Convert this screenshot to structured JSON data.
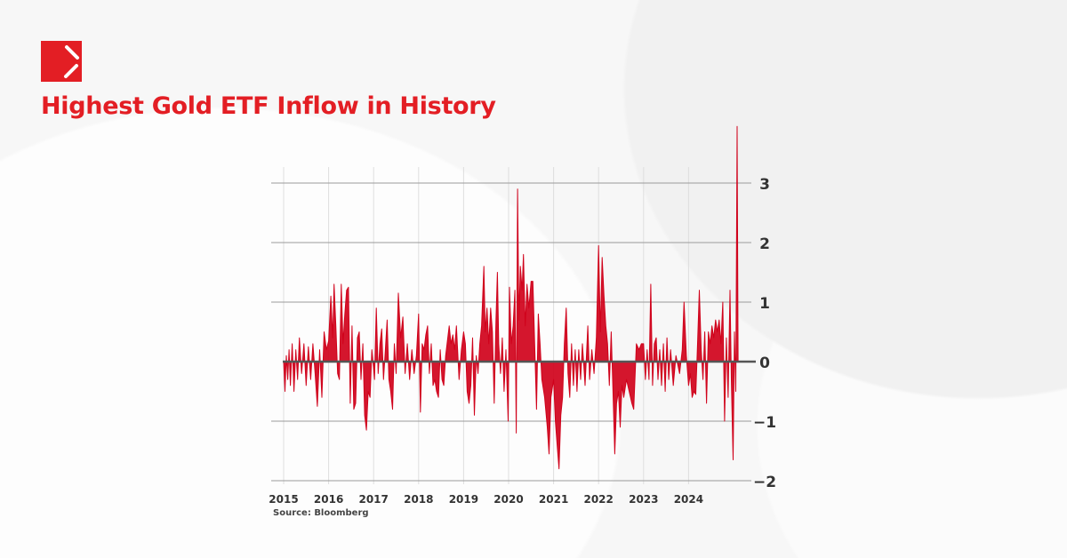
{
  "header": {
    "title": "Highest Gold ETF Inflow in History",
    "brand_color": "#e31e24"
  },
  "source": "Source: Bloomberg",
  "chart_data": {
    "type": "area",
    "title": "",
    "xlabel": "",
    "ylabel": "",
    "xlim": [
      2015,
      2025.25
    ],
    "ylim": [
      -2,
      3.5
    ],
    "x_ticks": [
      "2015",
      "2016",
      "2017",
      "2018",
      "2019",
      "2020",
      "2021",
      "2022",
      "2023",
      "2024"
    ],
    "y_ticks": [
      3,
      2,
      1,
      0,
      -1,
      -2
    ],
    "y_tick_labels": [
      "3",
      "2",
      "1",
      "0",
      "−1",
      "−2"
    ],
    "y_axis_position": "right",
    "grid": true,
    "color": "#d0021b",
    "series": [
      {
        "points": [
          [
            2015.0,
            0
          ],
          [
            2015.03,
            -0.5
          ],
          [
            2015.06,
            0.1
          ],
          [
            2015.09,
            -0.3
          ],
          [
            2015.12,
            0.2
          ],
          [
            2015.15,
            -0.4
          ],
          [
            2015.19,
            0.3
          ],
          [
            2015.23,
            -0.5
          ],
          [
            2015.27,
            0.2
          ],
          [
            2015.31,
            -0.3
          ],
          [
            2015.35,
            0.4
          ],
          [
            2015.4,
            -0.2
          ],
          [
            2015.45,
            0.3
          ],
          [
            2015.5,
            -0.4
          ],
          [
            2015.55,
            0.25
          ],
          [
            2015.6,
            -0.3
          ],
          [
            2015.65,
            0.3
          ],
          [
            2015.7,
            -0.2
          ],
          [
            2015.75,
            -0.75
          ],
          [
            2015.8,
            0.2
          ],
          [
            2015.85,
            -0.6
          ],
          [
            2015.9,
            0.5
          ],
          [
            2015.95,
            0.2
          ],
          [
            2016.0,
            0.35
          ],
          [
            2016.05,
            1.1
          ],
          [
            2016.09,
            0.4
          ],
          [
            2016.12,
            1.3
          ],
          [
            2016.16,
            0.6
          ],
          [
            2016.2,
            -0.2
          ],
          [
            2016.24,
            -0.3
          ],
          [
            2016.28,
            1.3
          ],
          [
            2016.32,
            0.3
          ],
          [
            2016.36,
            0.8
          ],
          [
            2016.4,
            1.2
          ],
          [
            2016.44,
            1.25
          ],
          [
            2016.48,
            -0.7
          ],
          [
            2016.52,
            0.6
          ],
          [
            2016.56,
            -0.8
          ],
          [
            2016.6,
            -0.7
          ],
          [
            2016.64,
            0.4
          ],
          [
            2016.68,
            0.5
          ],
          [
            2016.72,
            -0.3
          ],
          [
            2016.76,
            0.3
          ],
          [
            2016.8,
            -0.9
          ],
          [
            2016.84,
            -1.15
          ],
          [
            2016.88,
            -0.5
          ],
          [
            2016.92,
            -0.6
          ],
          [
            2016.96,
            0.2
          ],
          [
            2017.02,
            -0.3
          ],
          [
            2017.06,
            0.9
          ],
          [
            2017.1,
            -0.2
          ],
          [
            2017.14,
            0.3
          ],
          [
            2017.18,
            0.55
          ],
          [
            2017.22,
            -0.3
          ],
          [
            2017.26,
            0.2
          ],
          [
            2017.3,
            0.7
          ],
          [
            2017.34,
            -0.3
          ],
          [
            2017.38,
            -0.5
          ],
          [
            2017.42,
            -0.8
          ],
          [
            2017.46,
            0.3
          ],
          [
            2017.5,
            -0.2
          ],
          [
            2017.55,
            1.15
          ],
          [
            2017.6,
            0.4
          ],
          [
            2017.65,
            0.75
          ],
          [
            2017.7,
            -0.2
          ],
          [
            2017.75,
            0.3
          ],
          [
            2017.8,
            -0.3
          ],
          [
            2017.85,
            0.2
          ],
          [
            2017.9,
            -0.2
          ],
          [
            2017.95,
            0.1
          ],
          [
            2018.0,
            0.8
          ],
          [
            2018.04,
            -0.85
          ],
          [
            2018.08,
            0.3
          ],
          [
            2018.12,
            0.2
          ],
          [
            2018.16,
            0.45
          ],
          [
            2018.2,
            0.6
          ],
          [
            2018.24,
            -0.2
          ],
          [
            2018.28,
            0.3
          ],
          [
            2018.32,
            -0.4
          ],
          [
            2018.36,
            -0.3
          ],
          [
            2018.4,
            -0.5
          ],
          [
            2018.44,
            -0.6
          ],
          [
            2018.48,
            0.2
          ],
          [
            2018.52,
            -0.3
          ],
          [
            2018.56,
            -0.4
          ],
          [
            2018.6,
            0.1
          ],
          [
            2018.68,
            0.6
          ],
          [
            2018.72,
            0.3
          ],
          [
            2018.76,
            0.45
          ],
          [
            2018.8,
            0.2
          ],
          [
            2018.84,
            0.6
          ],
          [
            2018.9,
            -0.3
          ],
          [
            2018.95,
            0.2
          ],
          [
            2019.0,
            0.5
          ],
          [
            2019.04,
            0.3
          ],
          [
            2019.08,
            -0.5
          ],
          [
            2019.12,
            -0.7
          ],
          [
            2019.16,
            -0.4
          ],
          [
            2019.2,
            0.4
          ],
          [
            2019.24,
            -0.9
          ],
          [
            2019.28,
            0.1
          ],
          [
            2019.32,
            -0.2
          ],
          [
            2019.36,
            0.3
          ],
          [
            2019.4,
            0.6
          ],
          [
            2019.45,
            1.6
          ],
          [
            2019.48,
            0.5
          ],
          [
            2019.52,
            0.9
          ],
          [
            2019.56,
            0.3
          ],
          [
            2019.6,
            0.9
          ],
          [
            2019.64,
            0.5
          ],
          [
            2019.68,
            -0.7
          ],
          [
            2019.72,
            0.7
          ],
          [
            2019.75,
            1.5
          ],
          [
            2019.78,
            0.3
          ],
          [
            2019.82,
            -0.2
          ],
          [
            2019.86,
            0.4
          ],
          [
            2019.9,
            -0.5
          ],
          [
            2019.94,
            0.2
          ],
          [
            2019.99,
            -1.0
          ],
          [
            2020.02,
            1.25
          ],
          [
            2020.06,
            0.3
          ],
          [
            2020.1,
            0.6
          ],
          [
            2020.14,
            1.2
          ],
          [
            2020.17,
            -1.2
          ],
          [
            2020.2,
            2.9
          ],
          [
            2020.23,
            0.7
          ],
          [
            2020.26,
            1.6
          ],
          [
            2020.3,
            1.2
          ],
          [
            2020.33,
            1.8
          ],
          [
            2020.37,
            0.6
          ],
          [
            2020.41,
            1.3
          ],
          [
            2020.45,
            0.9
          ],
          [
            2020.5,
            1.35
          ],
          [
            2020.54,
            1.35
          ],
          [
            2020.58,
            0.3
          ],
          [
            2020.62,
            -0.8
          ],
          [
            2020.66,
            0.8
          ],
          [
            2020.7,
            0.3
          ],
          [
            2020.74,
            -0.3
          ],
          [
            2020.8,
            -0.6
          ],
          [
            2020.86,
            -1.1
          ],
          [
            2020.9,
            -1.55
          ],
          [
            2020.94,
            -0.6
          ],
          [
            2021.0,
            -0.3
          ],
          [
            2021.04,
            -1.0
          ],
          [
            2021.08,
            -1.4
          ],
          [
            2021.12,
            -1.8
          ],
          [
            2021.16,
            -0.9
          ],
          [
            2021.2,
            -0.6
          ],
          [
            2021.24,
            0.3
          ],
          [
            2021.28,
            0.9
          ],
          [
            2021.32,
            -0.2
          ],
          [
            2021.36,
            -0.6
          ],
          [
            2021.4,
            0.3
          ],
          [
            2021.44,
            -0.4
          ],
          [
            2021.48,
            0.2
          ],
          [
            2021.52,
            -0.5
          ],
          [
            2021.56,
            0.2
          ],
          [
            2021.6,
            -0.3
          ],
          [
            2021.64,
            0.3
          ],
          [
            2021.7,
            -0.4
          ],
          [
            2021.76,
            0.6
          ],
          [
            2021.8,
            -0.3
          ],
          [
            2021.85,
            0.2
          ],
          [
            2021.9,
            -0.2
          ],
          [
            2021.95,
            0.4
          ],
          [
            2022.0,
            1.95
          ],
          [
            2022.04,
            0.5
          ],
          [
            2022.08,
            1.75
          ],
          [
            2022.12,
            1.1
          ],
          [
            2022.16,
            0.6
          ],
          [
            2022.2,
            0.3
          ],
          [
            2022.24,
            -0.4
          ],
          [
            2022.28,
            0.5
          ],
          [
            2022.32,
            -0.5
          ],
          [
            2022.36,
            -1.55
          ],
          [
            2022.4,
            -0.7
          ],
          [
            2022.44,
            -0.5
          ],
          [
            2022.48,
            -1.1
          ],
          [
            2022.52,
            -0.4
          ],
          [
            2022.56,
            -0.6
          ],
          [
            2022.62,
            -0.3
          ],
          [
            2022.68,
            -0.5
          ],
          [
            2022.74,
            -0.7
          ],
          [
            2022.78,
            -0.8
          ],
          [
            2022.84,
            0.3
          ],
          [
            2022.9,
            0.2
          ],
          [
            2022.95,
            0.3
          ],
          [
            2023.0,
            0.3
          ],
          [
            2023.04,
            -0.3
          ],
          [
            2023.08,
            0.2
          ],
          [
            2023.12,
            -0.3
          ],
          [
            2023.16,
            1.3
          ],
          [
            2023.2,
            -0.4
          ],
          [
            2023.24,
            0.3
          ],
          [
            2023.28,
            0.4
          ],
          [
            2023.32,
            -0.3
          ],
          [
            2023.36,
            0.2
          ],
          [
            2023.4,
            -0.4
          ],
          [
            2023.44,
            0.3
          ],
          [
            2023.48,
            -0.5
          ],
          [
            2023.52,
            0.4
          ],
          [
            2023.56,
            -0.3
          ],
          [
            2023.6,
            0.2
          ],
          [
            2023.66,
            -0.4
          ],
          [
            2023.72,
            0.1
          ],
          [
            2023.8,
            -0.2
          ],
          [
            2023.86,
            0.2
          ],
          [
            2023.9,
            1.0
          ],
          [
            2023.95,
            0.1
          ],
          [
            2024.0,
            -0.4
          ],
          [
            2024.04,
            -0.2
          ],
          [
            2024.08,
            -0.6
          ],
          [
            2024.12,
            -0.5
          ],
          [
            2024.16,
            -0.55
          ],
          [
            2024.2,
            0.3
          ],
          [
            2024.24,
            1.2
          ],
          [
            2024.28,
            0.2
          ],
          [
            2024.32,
            -0.3
          ],
          [
            2024.36,
            0.5
          ],
          [
            2024.4,
            -0.7
          ],
          [
            2024.44,
            0.5
          ],
          [
            2024.48,
            0.3
          ],
          [
            2024.52,
            0.6
          ],
          [
            2024.56,
            0.4
          ],
          [
            2024.6,
            0.7
          ],
          [
            2024.64,
            0.5
          ],
          [
            2024.68,
            0.7
          ],
          [
            2024.72,
            0.3
          ],
          [
            2024.76,
            1.0
          ],
          [
            2024.8,
            -1.0
          ],
          [
            2024.84,
            0.4
          ],
          [
            2024.88,
            -0.6
          ],
          [
            2024.92,
            1.2
          ],
          [
            2024.95,
            -0.3
          ],
          [
            2024.99,
            -1.65
          ],
          [
            2025.02,
            0.5
          ],
          [
            2025.05,
            -0.5
          ],
          [
            2025.08,
            3.95
          ],
          [
            2025.1,
            0
          ]
        ]
      }
    ]
  }
}
